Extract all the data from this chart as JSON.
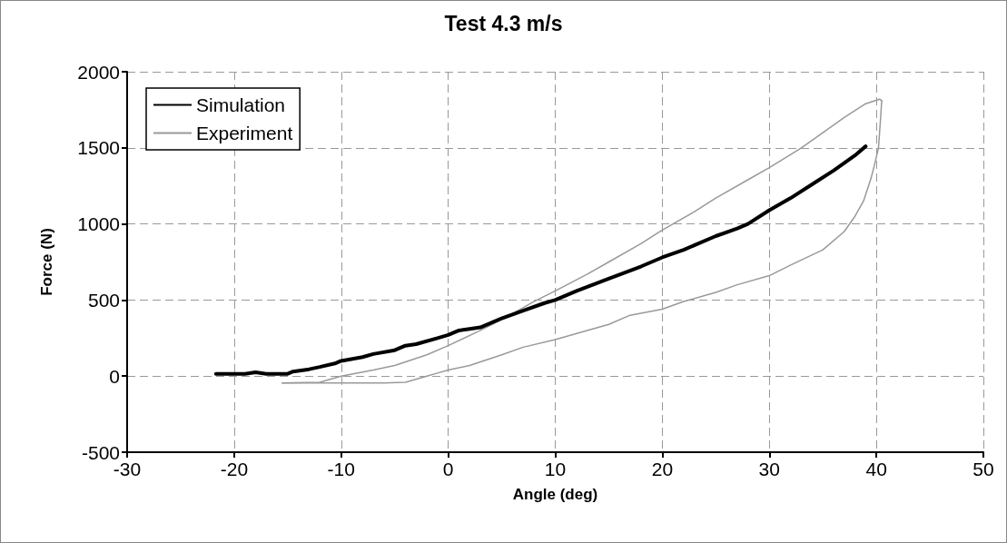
{
  "chart_data": {
    "type": "line",
    "title": "Test 4.3 m/s",
    "xlabel": "Angle (deg)",
    "ylabel": "Force (N)",
    "xlim": [
      -30,
      50
    ],
    "xticks": [
      -30,
      -20,
      -10,
      0,
      10,
      20,
      30,
      40,
      50
    ],
    "ylim": [
      -500,
      2000
    ],
    "yticks": [
      -500,
      0,
      500,
      1000,
      1500,
      2000
    ],
    "grid": true,
    "legend": "top left",
    "marker": "none",
    "line_style": "solid",
    "series": [
      {
        "name": "Simulation",
        "color": "#000000",
        "x": [
          -21.7,
          -19,
          -18,
          -17,
          -15,
          -14.5,
          -13,
          -12,
          -10.5,
          -10,
          -8,
          -7,
          -5,
          -4,
          -3,
          -1,
          0,
          1,
          2,
          3,
          5,
          7,
          9,
          10,
          12,
          15,
          18,
          20,
          22,
          25,
          27,
          28,
          30,
          32,
          34,
          36,
          38,
          39
        ],
        "values": [
          15,
          15,
          25,
          15,
          15,
          30,
          45,
          60,
          85,
          100,
          125,
          145,
          170,
          200,
          210,
          250,
          270,
          300,
          310,
          320,
          380,
          430,
          480,
          500,
          560,
          640,
          720,
          780,
          830,
          920,
          970,
          1000,
          1090,
          1170,
          1260,
          1350,
          1450,
          1510
        ]
      },
      {
        "name": "Experiment",
        "color": "#999999",
        "x": [
          -15.5,
          -12,
          -10,
          -7,
          -5,
          -2,
          0,
          3,
          5,
          8,
          10,
          13,
          15,
          18,
          20,
          23,
          25,
          28,
          30,
          33,
          35,
          37,
          39,
          40.3,
          40.5
        ],
        "values": [
          -45,
          -40,
          0,
          40,
          70,
          140,
          200,
          300,
          370,
          490,
          560,
          670,
          750,
          870,
          960,
          1080,
          1170,
          1290,
          1370,
          1500,
          1600,
          1700,
          1790,
          1820,
          1810
        ]
      },
      {
        "color": "#999999",
        "x": [
          40.5,
          40.4,
          40.2,
          39.8,
          39.5,
          38.8,
          38,
          37,
          35,
          32,
          30,
          27,
          25,
          22,
          20,
          17,
          15,
          12,
          10,
          7,
          5,
          2,
          0,
          -1,
          -2,
          -4,
          -6,
          -10,
          -15.5
        ],
        "values": [
          1810,
          1700,
          1500,
          1380,
          1300,
          1150,
          1050,
          950,
          830,
          730,
          660,
          600,
          550,
          490,
          440,
          400,
          340,
          280,
          240,
          190,
          140,
          70,
          40,
          20,
          0,
          -40,
          -45,
          -45,
          -45
        ]
      }
    ]
  }
}
